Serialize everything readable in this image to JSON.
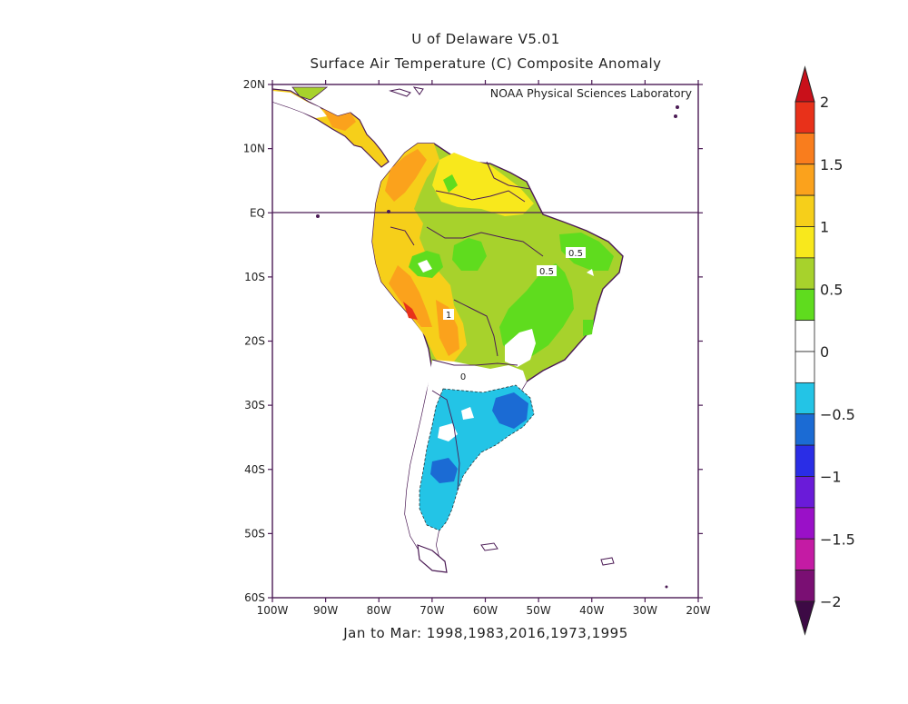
{
  "title_line1": "U of Delaware V5.01",
  "title_line2": "Surface Air Temperature (C) Composite Anomaly",
  "credit": "NOAA Physical Sciences Laboratory",
  "caption": "Jan to Mar: 1998,1983,2016,1973,1995",
  "lat_ticks": [
    "20N",
    "10N",
    "EQ",
    "10S",
    "20S",
    "30S",
    "40S",
    "50S",
    "60S"
  ],
  "lon_ticks": [
    "100W",
    "90W",
    "80W",
    "70W",
    "60W",
    "50W",
    "40W",
    "30W",
    "20W"
  ],
  "contour_labels": [
    "0.5",
    "0.5",
    "1",
    "0"
  ],
  "colorbar": {
    "labels": [
      "2",
      "1.5",
      "1",
      "0.5",
      "0",
      "-0.5",
      "-1",
      "-1.5",
      "-2"
    ],
    "colors": [
      "#e8311a",
      "#f97d1d",
      "#fba21c",
      "#f6cf1a",
      "#f8e81c",
      "#a7d22c",
      "#5fdc1e",
      "#ffffff",
      "#ffffff",
      "#23c4e6",
      "#1b6bd4",
      "#2a2de6",
      "#6a1bd9",
      "#9a10c8",
      "#c41ba4",
      "#7a0f73"
    ],
    "top_arrow_color": "#c9101a",
    "bottom_arrow_color": "#3d0a45"
  },
  "map": {
    "lat_range": [
      -60,
      20
    ],
    "lon_range": [
      -100,
      -20
    ],
    "equator_line": true
  }
}
